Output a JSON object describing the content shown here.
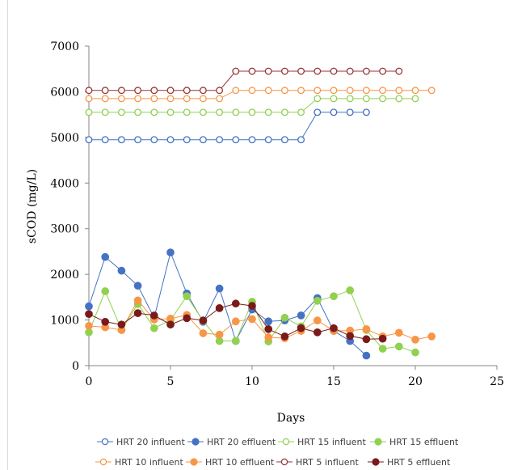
{
  "chart_data": {
    "type": "line",
    "title": "",
    "xlabel": "Days",
    "ylabel": "sCOD (mg/L)",
    "xlim": [
      0,
      25
    ],
    "ylim": [
      0,
      7000
    ],
    "x_ticks": [
      0,
      5,
      10,
      15,
      20,
      25
    ],
    "y_ticks": [
      0,
      1000,
      2000,
      3000,
      4000,
      5000,
      6000,
      7000
    ],
    "grid": false,
    "legend_position": "bottom",
    "series": [
      {
        "name": "HRT 20 influent",
        "color": "#4472C4",
        "marker": "open",
        "x": [
          0,
          1,
          2,
          3,
          4,
          5,
          6,
          7,
          8,
          9,
          10,
          11,
          12,
          13,
          14,
          15,
          16,
          17
        ],
        "y": [
          4950,
          4950,
          4950,
          4950,
          4950,
          4950,
          4950,
          4950,
          4950,
          4950,
          4950,
          4950,
          4950,
          4950,
          5550,
          5550,
          5550,
          5550
        ]
      },
      {
        "name": "HRT 20 effluent",
        "color": "#4472C4",
        "marker": "filled",
        "x": [
          0,
          1,
          2,
          3,
          4,
          5,
          6,
          7,
          8,
          9,
          10,
          11,
          12,
          13,
          14,
          15,
          16,
          17
        ],
        "y": [
          1300,
          2380,
          2080,
          1750,
          1050,
          2480,
          1580,
          960,
          1690,
          540,
          1230,
          970,
          990,
          1100,
          1480,
          760,
          540,
          220
        ]
      },
      {
        "name": "HRT 15 influent",
        "color": "#92D050",
        "marker": "open",
        "x": [
          0,
          1,
          2,
          3,
          4,
          5,
          6,
          7,
          8,
          9,
          10,
          11,
          12,
          13,
          14,
          15,
          16,
          17,
          18,
          19,
          20
        ],
        "y": [
          5550,
          5550,
          5550,
          5550,
          5550,
          5550,
          5550,
          5550,
          5550,
          5550,
          5550,
          5550,
          5550,
          5550,
          5850,
          5850,
          5850,
          5850,
          5850,
          5850,
          5850
        ]
      },
      {
        "name": "HRT 15 effluent",
        "color": "#92D050",
        "marker": "filled",
        "x": [
          0,
          1,
          2,
          3,
          4,
          5,
          6,
          7,
          8,
          9,
          10,
          11,
          12,
          13,
          14,
          15,
          16,
          17,
          18,
          19,
          20
        ],
        "y": [
          730,
          1630,
          780,
          1350,
          820,
          1000,
          1520,
          980,
          540,
          540,
          1400,
          530,
          1050,
          860,
          1420,
          1520,
          1650,
          780,
          370,
          420,
          290
        ]
      },
      {
        "name": "HRT 10 influent",
        "color": "#F79646",
        "marker": "open",
        "x": [
          0,
          1,
          2,
          3,
          4,
          5,
          6,
          7,
          8,
          9,
          10,
          11,
          12,
          13,
          14,
          15,
          16,
          17,
          18,
          19,
          20,
          21
        ],
        "y": [
          5850,
          5850,
          5850,
          5850,
          5850,
          5850,
          5850,
          5850,
          5850,
          6030,
          6030,
          6030,
          6030,
          6030,
          6030,
          6030,
          6030,
          6030,
          6030,
          6030,
          6030,
          6030
        ]
      },
      {
        "name": "HRT 10 effluent",
        "color": "#F79646",
        "marker": "filled",
        "x": [
          0,
          1,
          2,
          3,
          4,
          5,
          6,
          7,
          8,
          9,
          10,
          11,
          12,
          13,
          14,
          15,
          16,
          17,
          18,
          19,
          20,
          21
        ],
        "y": [
          870,
          840,
          780,
          1430,
          1010,
          1030,
          1110,
          710,
          680,
          970,
          1020,
          620,
          600,
          760,
          990,
          760,
          770,
          800,
          640,
          720,
          570,
          640
        ]
      },
      {
        "name": "HRT 5 influent",
        "color": "#943634",
        "marker": "open",
        "x": [
          0,
          1,
          2,
          3,
          4,
          5,
          6,
          7,
          8,
          9,
          10,
          11,
          12,
          13,
          14,
          15,
          16,
          17,
          18,
          19
        ],
        "y": [
          6030,
          6030,
          6030,
          6030,
          6030,
          6030,
          6030,
          6030,
          6030,
          6450,
          6450,
          6450,
          6450,
          6450,
          6450,
          6450,
          6450,
          6450,
          6450,
          6450
        ]
      },
      {
        "name": "HRT 5 effluent",
        "color": "#7B1A1A",
        "marker": "filled",
        "x": [
          0,
          1,
          2,
          3,
          4,
          5,
          6,
          7,
          8,
          9,
          10,
          11,
          12,
          13,
          14,
          15,
          16,
          17,
          18
        ],
        "y": [
          1130,
          960,
          900,
          1150,
          1100,
          900,
          1040,
          990,
          1260,
          1360,
          1310,
          800,
          640,
          820,
          730,
          820,
          650,
          580,
          590
        ]
      }
    ]
  }
}
